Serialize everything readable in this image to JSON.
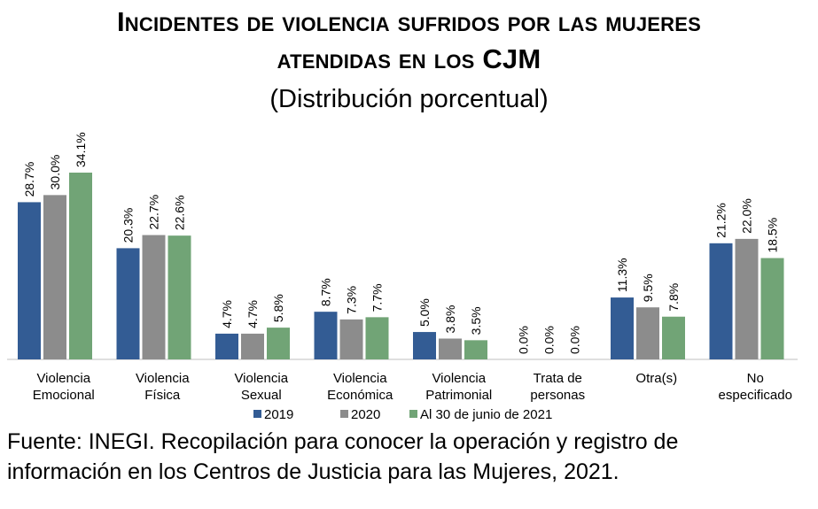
{
  "chart_data": {
    "type": "bar",
    "title_line1": "Incidentes de violencia sufridos por las mujeres",
    "title_line2": "atendidas en los CJM",
    "subtitle": "(Distribución porcentual)",
    "categories": [
      [
        "Violencia",
        "Emocional"
      ],
      [
        "Violencia",
        "Física"
      ],
      [
        "Violencia",
        "Sexual"
      ],
      [
        "Violencia",
        "Económica"
      ],
      [
        "Violencia",
        "Patrimonial"
      ],
      [
        "Trata de",
        "personas"
      ],
      [
        "Otra(s)"
      ],
      [
        "No",
        "especificado"
      ]
    ],
    "series": [
      {
        "name": "2019",
        "color": "#335c94",
        "values": [
          28.7,
          20.3,
          4.7,
          8.7,
          5.0,
          0.0,
          11.3,
          21.2
        ]
      },
      {
        "name": "2020",
        "color": "#8c8c8c",
        "values": [
          30.0,
          22.7,
          4.7,
          7.3,
          3.8,
          0.0,
          9.5,
          22.0
        ]
      },
      {
        "name": "Al 30 de junio de 2021",
        "color": "#71a476",
        "values": [
          34.1,
          22.6,
          5.8,
          7.7,
          3.5,
          0.0,
          7.8,
          18.5
        ]
      }
    ],
    "value_suffix": "%",
    "ylim": [
      0,
      40
    ],
    "grid": false,
    "legend_position": "bottom"
  },
  "source": {
    "line1": "Fuente: INEGI. Recopilación para conocer la operación y registro de",
    "line2": "información en los Centros de Justicia para las Mujeres, 2021."
  }
}
